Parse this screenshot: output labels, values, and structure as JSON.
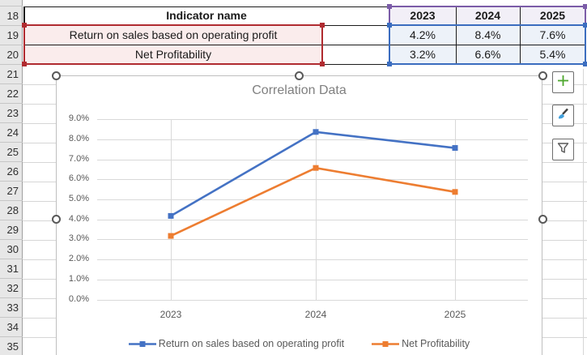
{
  "sheet": {
    "row_numbers": [
      "18",
      "19",
      "20",
      "21",
      "22",
      "23",
      "24",
      "25",
      "26",
      "27",
      "28",
      "29",
      "30",
      "31",
      "32",
      "33",
      "34",
      "35"
    ]
  },
  "table": {
    "indicator_header": "Indicator name",
    "year_headers": [
      "2023",
      "2024",
      "2025"
    ],
    "rows": [
      {
        "name": "Return on sales based on operating profit",
        "values": [
          "4.2%",
          "8.4%",
          "7.6%"
        ]
      },
      {
        "name": "Net Profitability",
        "values": [
          "3.2%",
          "6.6%",
          "5.4%"
        ]
      }
    ],
    "highlight_colors": {
      "series_names_border": "#b02b30",
      "series_names_fill": "#faecec",
      "categories_border": "#7b5ca8",
      "categories_fill": "#f2eff7",
      "values_border": "#3b6dbf",
      "values_fill": "#edf2f9"
    }
  },
  "chart_data": {
    "type": "line",
    "title": "Correlation Data",
    "categories": [
      "2023",
      "2024",
      "2025"
    ],
    "series": [
      {
        "name": "Return on sales based on operating profit",
        "color": "#4472C4",
        "values_pct": [
          4.2,
          8.4,
          7.6
        ]
      },
      {
        "name": "Net Profitability",
        "color": "#ED7D31",
        "values_pct": [
          3.2,
          6.6,
          5.4
        ]
      }
    ],
    "ytick_labels": [
      "0.0%",
      "1.0%",
      "2.0%",
      "3.0%",
      "4.0%",
      "5.0%",
      "6.0%",
      "7.0%",
      "8.0%",
      "9.0%"
    ],
    "ylim_pct": [
      0,
      9
    ],
    "grid": true,
    "legend_position": "bottom"
  },
  "chart_tools": [
    {
      "name": "chart-elements",
      "icon": "plus-icon",
      "icon_color": "#4ea72e"
    },
    {
      "name": "chart-styles",
      "icon": "brush-icon",
      "icon_color": "#41a0dc"
    },
    {
      "name": "chart-filters",
      "icon": "funnel-icon",
      "icon_color": "#595959"
    }
  ]
}
